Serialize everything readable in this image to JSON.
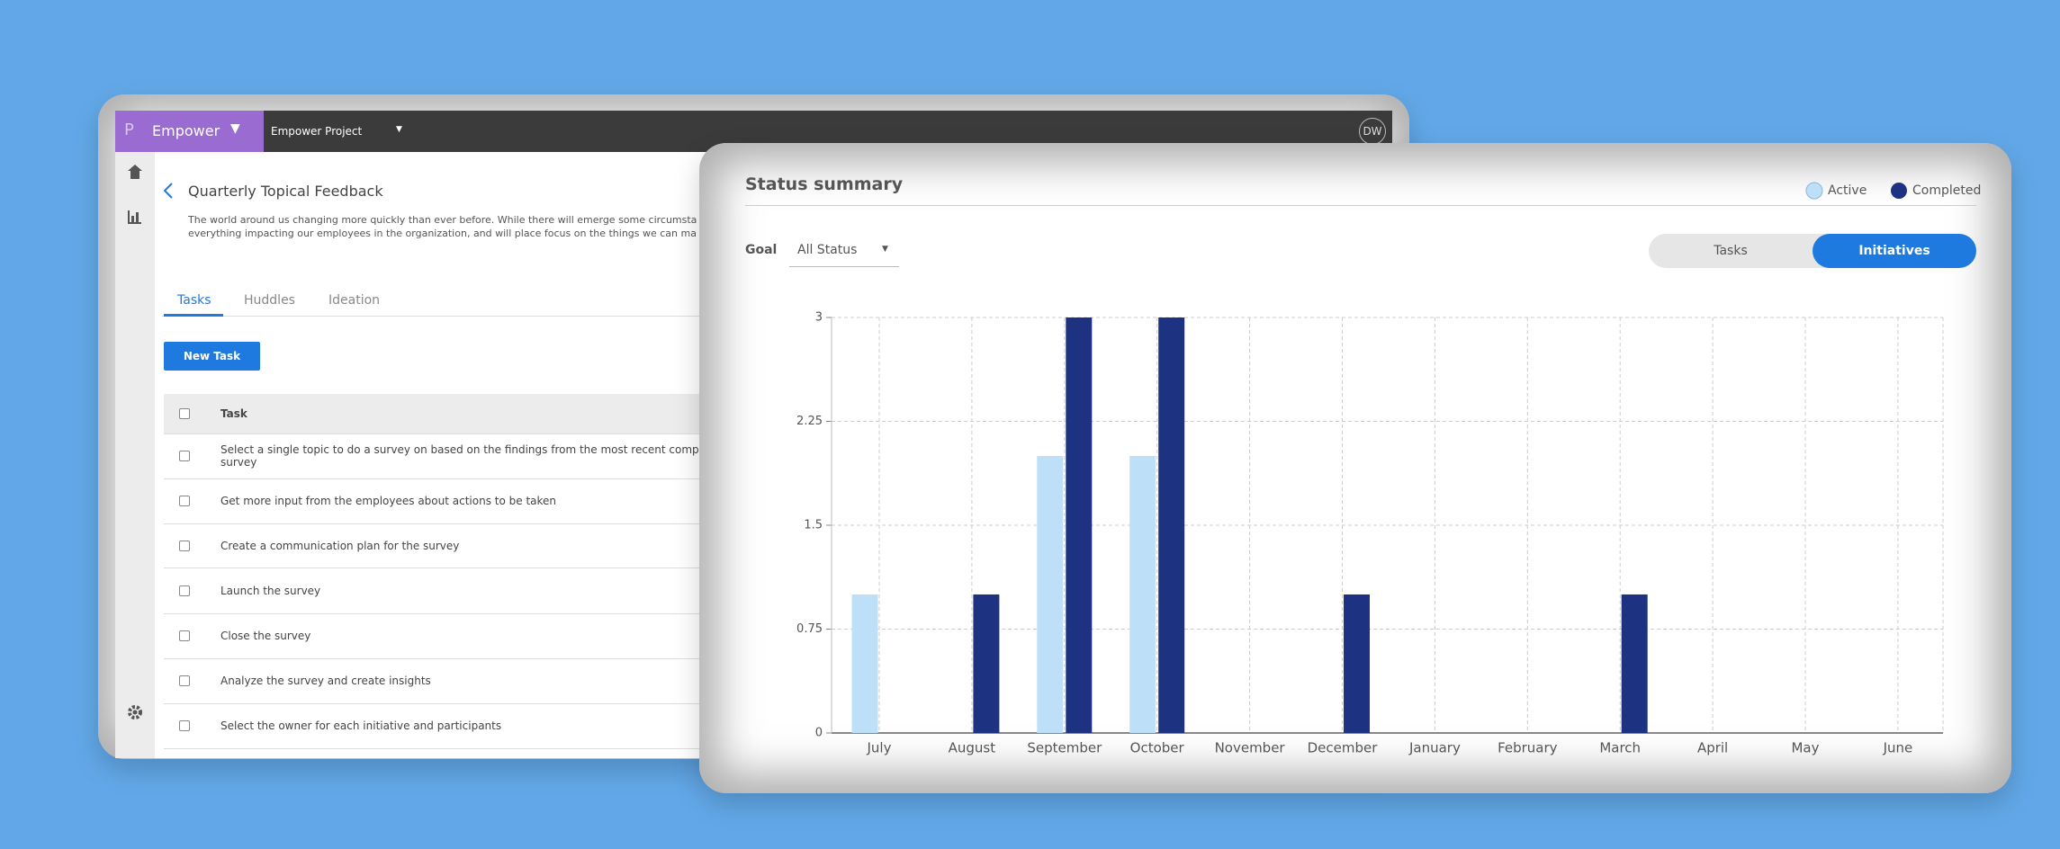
{
  "app": {
    "brand": "Empower",
    "project": "Empower Project",
    "avatar": "DW"
  },
  "page": {
    "title": "Quarterly Topical Feedback",
    "description": [
      "The world around us changing more quickly than ever before. While there will emerge some circumsta",
      "everything impacting our employees in the organization, and will place focus on the things we can ma"
    ],
    "tabs": [
      "Tasks",
      "Huddles",
      "Ideation"
    ],
    "button": "New Task",
    "table": {
      "header": "Task",
      "rows": [
        [
          "Select a single topic to do a survey on based on the findings from the most recent comprehens",
          "survey"
        ],
        [
          "Get more input from the employees about actions to be taken"
        ],
        [
          "Create a communication plan for the survey"
        ],
        [
          "Launch the survey"
        ],
        [
          "Close the survey"
        ],
        [
          "Analyze the survey and create insights"
        ],
        [
          "Select the owner for each initiative and participants"
        ]
      ]
    }
  },
  "panel": {
    "goal_label": "Goal",
    "goal_value": "All Status",
    "toggle": [
      "Tasks",
      "Initiatives"
    ],
    "toggle_active": 1
  },
  "chart_data": {
    "type": "bar",
    "title": "Status summary",
    "categories": [
      "July",
      "August",
      "September",
      "October",
      "November",
      "December",
      "January",
      "February",
      "March",
      "April",
      "May",
      "June"
    ],
    "series": [
      {
        "name": "Active",
        "color": "#bde0f8",
        "values": [
          1,
          0,
          2,
          2,
          0,
          0,
          0,
          0,
          0,
          0,
          0,
          0
        ]
      },
      {
        "name": "Completed",
        "color": "#1e3282",
        "values": [
          0,
          1,
          3,
          3,
          0,
          1,
          0,
          0,
          1,
          0,
          0,
          0
        ]
      }
    ],
    "ylim": [
      0,
      3
    ],
    "yticks": [
      0,
      0.75,
      1.5,
      2.25,
      3
    ],
    "grid": true,
    "legend": "top-right"
  }
}
